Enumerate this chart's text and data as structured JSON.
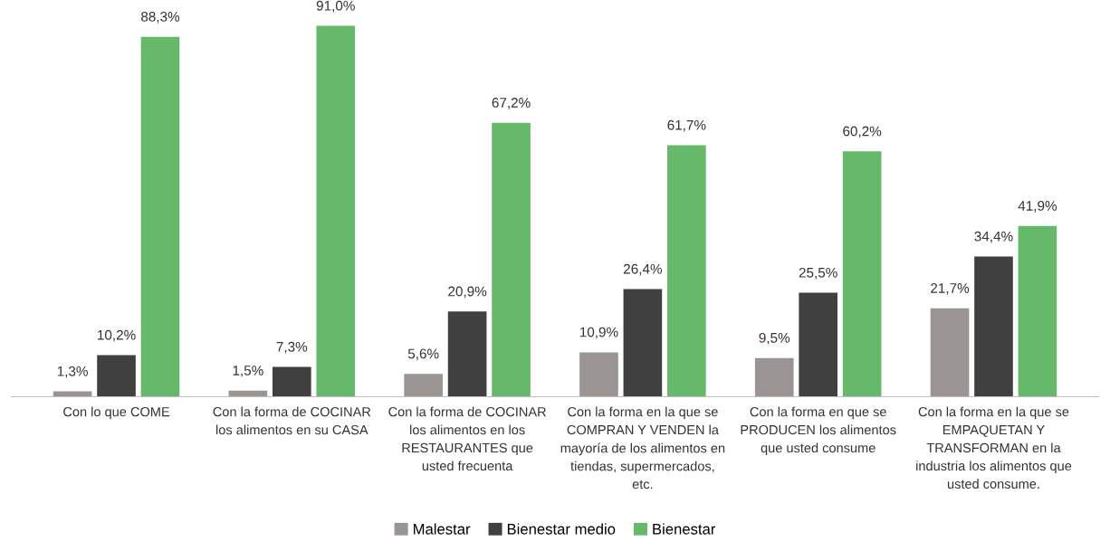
{
  "chart_data": {
    "type": "bar",
    "categories": [
      "Con lo que COME",
      "Con la forma de COCINAR\nlos alimentos en su CASA",
      "Con la forma de COCINAR\nlos alimentos en los\nRESTAURANTES que\nusted frecuenta",
      "Con la forma en la que se\nCOMPRAN Y VENDEN la\nmayoría de los alimentos en\ntiendas, supermercados,\netc.",
      "Con la forma en que se\nPRODUCEN los alimentos\nque usted consume",
      "Con la forma en la que se\nEMPAQUETAN Y\nTRANSFORMAN en la\nindustria los alimentos que\nusted consume."
    ],
    "series": [
      {
        "name": "Malestar",
        "color": "#9a9593",
        "values": [
          1.3,
          1.5,
          5.6,
          10.9,
          9.5,
          21.7
        ],
        "value_labels": [
          "1,3%",
          "1,5%",
          "5,6%",
          "10,9%",
          "9,5%",
          "21,7%"
        ]
      },
      {
        "name": "Bienestar medio",
        "color": "#404040",
        "values": [
          10.2,
          7.3,
          20.9,
          26.4,
          25.5,
          34.4
        ],
        "value_labels": [
          "10,2%",
          "7,3%",
          "20,9%",
          "26,4%",
          "25,5%",
          "34,4%"
        ]
      },
      {
        "name": "Bienestar",
        "color": "#66b96a",
        "values": [
          88.3,
          91.0,
          67.2,
          61.7,
          60.2,
          41.9
        ],
        "value_labels": [
          "88,3%",
          "91,0%",
          "67,2%",
          "61,7%",
          "60,2%",
          "41,9%"
        ]
      }
    ],
    "legend": "bottom",
    "grid": false
  }
}
